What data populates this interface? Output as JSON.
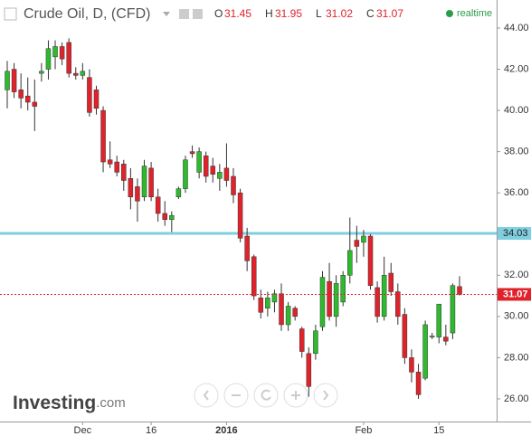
{
  "chart_data": {
    "type": "candlestick",
    "title": "Crude Oil, D, (CFD)",
    "ohlc_letters": [
      "O",
      "H",
      "L",
      "C"
    ],
    "status": "realtime",
    "brand": "Investing",
    "brand_suffix": ".com",
    "up_color": "#2dbb2d",
    "down_color": "#e0232b",
    "categories": [
      null,
      null,
      null,
      null,
      null,
      null,
      null,
      null,
      null,
      null,
      null,
      "Dec",
      null,
      null,
      null,
      null,
      null,
      null,
      null,
      null,
      null,
      "16",
      null,
      null,
      null,
      null,
      null,
      null,
      null,
      null,
      null,
      null,
      "2016",
      null,
      null,
      null,
      null,
      null,
      null,
      null,
      null,
      null,
      null,
      null,
      null,
      null,
      null,
      null,
      null,
      null,
      null,
      null,
      "Feb",
      null,
      null,
      null,
      null,
      null,
      null,
      null,
      null,
      null,
      null,
      "15",
      null,
      null,
      null
    ],
    "open": [
      41.0,
      42.0,
      41.0,
      40.7,
      40.4,
      41.8,
      42.0,
      42.6,
      43.1,
      43.3,
      41.8,
      41.7,
      41.6,
      41.0,
      40.0,
      37.6,
      37.5,
      37.4,
      36.7,
      36.3,
      35.8,
      37.2,
      35.8,
      35.0,
      34.7,
      35.8,
      36.2,
      38.0,
      37.0,
      37.8,
      37.3,
      36.7,
      37.2,
      36.8,
      36.0,
      33.9,
      32.9,
      30.9,
      30.4,
      30.7,
      31.1,
      29.6,
      30.4,
      29.4,
      28.2,
      28.2,
      29.5,
      31.7,
      30.0,
      30.7,
      32.0,
      33.7,
      33.6,
      33.9,
      31.4,
      30.0,
      32.1,
      31.2,
      30.1,
      28.0,
      27.3,
      27.0,
      29.0,
      29.0,
      29.0,
      29.2,
      31.45
    ],
    "high": [
      42.4,
      42.3,
      41.8,
      41.6,
      41.5,
      42.3,
      43.4,
      43.4,
      43.3,
      43.5,
      42.1,
      42.3,
      42.0,
      41.2,
      40.2,
      38.5,
      37.8,
      37.6,
      37.2,
      36.7,
      37.6,
      37.5,
      36.2,
      35.6,
      35.1,
      36.3,
      37.8,
      38.3,
      38.2,
      38.0,
      37.7,
      37.4,
      38.4,
      37.2,
      36.2,
      34.3,
      33.0,
      31.3,
      31.2,
      31.3,
      31.6,
      30.7,
      30.5,
      29.5,
      28.5,
      29.6,
      32.2,
      32.6,
      32.0,
      32.2,
      34.8,
      34.4,
      34.2,
      34.0,
      31.7,
      32.9,
      32.6,
      31.6,
      30.4,
      28.4,
      27.7,
      29.8,
      29.2,
      30.6,
      29.6,
      31.6,
      31.95
    ],
    "low": [
      40.1,
      40.6,
      40.1,
      40.0,
      39.0,
      41.4,
      41.5,
      42.0,
      42.2,
      41.6,
      41.5,
      41.5,
      39.7,
      39.8,
      37.0,
      37.2,
      36.8,
      36.1,
      35.2,
      34.6,
      35.6,
      35.6,
      34.6,
      34.4,
      34.1,
      35.7,
      36.0,
      37.7,
      36.7,
      36.5,
      36.5,
      36.1,
      36.3,
      35.5,
      33.6,
      32.2,
      30.8,
      29.9,
      30.0,
      30.2,
      29.3,
      29.3,
      29.8,
      28.0,
      26.1,
      27.9,
      29.3,
      29.8,
      29.5,
      30.5,
      31.6,
      32.6,
      32.9,
      31.3,
      29.7,
      29.8,
      31.0,
      29.6,
      27.7,
      26.8,
      26.0,
      26.9,
      28.9,
      28.7,
      28.6,
      28.9,
      31.02
    ],
    "close": [
      41.9,
      40.9,
      40.6,
      40.4,
      40.2,
      41.9,
      43.0,
      43.1,
      42.5,
      41.8,
      41.7,
      41.9,
      39.9,
      40.1,
      37.5,
      37.4,
      37.0,
      36.6,
      35.8,
      35.6,
      37.3,
      35.8,
      35.0,
      34.7,
      34.9,
      36.2,
      37.6,
      37.9,
      38.0,
      36.8,
      36.9,
      37.0,
      36.6,
      35.9,
      33.8,
      32.7,
      31.0,
      30.2,
      30.9,
      31.1,
      29.6,
      30.5,
      30.0,
      28.3,
      26.6,
      29.3,
      31.9,
      30.0,
      31.6,
      32.0,
      33.2,
      33.4,
      33.9,
      31.5,
      30.0,
      32.0,
      31.2,
      30.0,
      28.0,
      27.3,
      26.2,
      29.6,
      29.05,
      30.6,
      28.8,
      31.5,
      31.07
    ],
    "hline": {
      "value": 34.03,
      "color": "#7fcfe0"
    },
    "ylim": [
      24.9,
      45.36
    ],
    "yticks": [
      {
        "value": 26,
        "label": "26.00"
      },
      {
        "value": 28,
        "label": "28.00"
      },
      {
        "value": 30,
        "label": "30.00"
      },
      {
        "value": 32,
        "label": "32.00"
      },
      {
        "value": 34,
        "label": "34.00"
      },
      {
        "value": 36,
        "label": "36.00"
      },
      {
        "value": 38,
        "label": "38.00"
      },
      {
        "value": 40,
        "label": "40.00"
      },
      {
        "value": 42,
        "label": "42.00"
      },
      {
        "value": 44,
        "label": "44.00"
      }
    ],
    "grid": false
  }
}
